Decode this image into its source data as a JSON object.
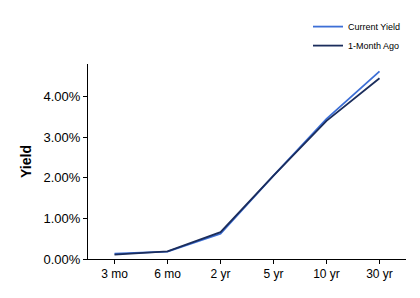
{
  "chart_data": {
    "type": "line",
    "y_label": "Yield",
    "categories": [
      "3 mo",
      "6 mo",
      "2 yr",
      "5 yr",
      "10 yr",
      "30 yr"
    ],
    "series": [
      {
        "name": "Current Yield",
        "color": "#3d6fd6",
        "values": [
          0.13,
          0.18,
          0.62,
          2.05,
          3.45,
          4.62
        ]
      },
      {
        "name": "1-Month Ago",
        "color": "#1b2d5c",
        "values": [
          0.11,
          0.19,
          0.66,
          2.05,
          3.4,
          4.45
        ]
      }
    ],
    "ylim": [
      0,
      4.8
    ],
    "yticks": [
      {
        "value": 0,
        "label": "0.00%"
      },
      {
        "value": 1,
        "label": "1.00%"
      },
      {
        "value": 2,
        "label": "2.00%"
      },
      {
        "value": 3,
        "label": "3.00%"
      },
      {
        "value": 4,
        "label": "4.00%"
      }
    ],
    "grid": false,
    "legend": "upper right"
  }
}
